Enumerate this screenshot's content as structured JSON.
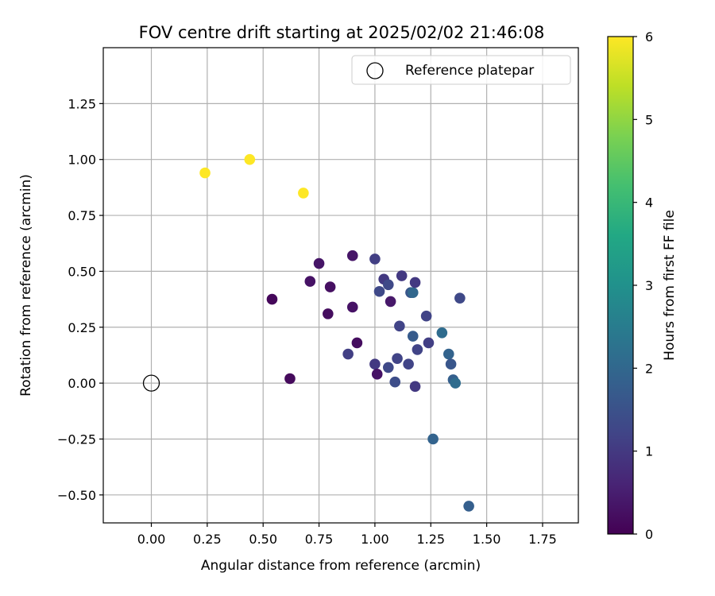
{
  "chart_data": {
    "type": "scatter",
    "title": "FOV centre drift starting at 2025/02/02 21:46:08",
    "xlabel": "Angular distance from reference (arcmin)",
    "ylabel": "Rotation from reference (arcmin)",
    "xlim": [
      -0.215,
      1.91
    ],
    "ylim": [
      -0.625,
      1.5
    ],
    "xticks": [
      "0.00",
      "0.25",
      "0.50",
      "0.75",
      "1.00",
      "1.25",
      "1.50",
      "1.75"
    ],
    "yticks": [
      "−0.50",
      "−0.25",
      "0.00",
      "0.25",
      "0.50",
      "0.75",
      "1.00",
      "1.25"
    ],
    "grid": true,
    "legend": {
      "placement": "top-right",
      "label": "Reference platepar"
    },
    "reference_point": {
      "x": 0.0,
      "y": 0.0
    },
    "colorbar": {
      "label": "Hours from first FF file",
      "min": 0,
      "max": 6,
      "ticks": [
        "0",
        "1",
        "2",
        "3",
        "4",
        "5",
        "6"
      ],
      "colormap": "viridis"
    },
    "series": [
      {
        "points": [
          {
            "x": 0.24,
            "y": 0.94,
            "c": 6.0
          },
          {
            "x": 0.44,
            "y": 1.0,
            "c": 6.0
          },
          {
            "x": 0.68,
            "y": 0.85,
            "c": 6.0
          },
          {
            "x": 0.54,
            "y": 0.375,
            "c": 0.1
          },
          {
            "x": 0.62,
            "y": 0.02,
            "c": 0.15
          },
          {
            "x": 0.71,
            "y": 0.455,
            "c": 0.3
          },
          {
            "x": 0.75,
            "y": 0.535,
            "c": 0.35
          },
          {
            "x": 0.79,
            "y": 0.31,
            "c": 0.2
          },
          {
            "x": 0.8,
            "y": 0.43,
            "c": 0.25
          },
          {
            "x": 0.9,
            "y": 0.57,
            "c": 0.35
          },
          {
            "x": 0.9,
            "y": 0.34,
            "c": 0.3
          },
          {
            "x": 0.92,
            "y": 0.18,
            "c": 0.2
          },
          {
            "x": 0.88,
            "y": 0.13,
            "c": 1.1
          },
          {
            "x": 1.0,
            "y": 0.555,
            "c": 1.1
          },
          {
            "x": 1.0,
            "y": 0.085,
            "c": 1.0
          },
          {
            "x": 1.01,
            "y": 0.04,
            "c": 0.3
          },
          {
            "x": 1.02,
            "y": 0.41,
            "c": 1.3
          },
          {
            "x": 1.04,
            "y": 0.465,
            "c": 1.0
          },
          {
            "x": 1.06,
            "y": 0.44,
            "c": 1.3
          },
          {
            "x": 1.06,
            "y": 0.07,
            "c": 1.3
          },
          {
            "x": 1.07,
            "y": 0.365,
            "c": 0.4
          },
          {
            "x": 1.09,
            "y": 0.005,
            "c": 1.4
          },
          {
            "x": 1.1,
            "y": 0.11,
            "c": 1.2
          },
          {
            "x": 1.11,
            "y": 0.255,
            "c": 1.2
          },
          {
            "x": 1.12,
            "y": 0.48,
            "c": 1.0
          },
          {
            "x": 1.15,
            "y": 0.085,
            "c": 1.2
          },
          {
            "x": 1.16,
            "y": 0.405,
            "c": 1.6
          },
          {
            "x": 1.17,
            "y": 0.405,
            "c": 2.0
          },
          {
            "x": 1.17,
            "y": 0.21,
            "c": 1.7
          },
          {
            "x": 1.18,
            "y": 0.45,
            "c": 1.0
          },
          {
            "x": 1.18,
            "y": -0.015,
            "c": 1.0
          },
          {
            "x": 1.19,
            "y": 0.15,
            "c": 1.2
          },
          {
            "x": 1.23,
            "y": 0.3,
            "c": 1.2
          },
          {
            "x": 1.24,
            "y": 0.18,
            "c": 1.1
          },
          {
            "x": 1.26,
            "y": -0.25,
            "c": 1.9
          },
          {
            "x": 1.3,
            "y": 0.225,
            "c": 2.1
          },
          {
            "x": 1.33,
            "y": 0.13,
            "c": 1.9
          },
          {
            "x": 1.34,
            "y": 0.085,
            "c": 1.6
          },
          {
            "x": 1.35,
            "y": 0.015,
            "c": 1.8
          },
          {
            "x": 1.36,
            "y": 0.0,
            "c": 2.1
          },
          {
            "x": 1.38,
            "y": 0.38,
            "c": 1.3
          },
          {
            "x": 1.42,
            "y": -0.55,
            "c": 1.8
          }
        ]
      }
    ]
  }
}
